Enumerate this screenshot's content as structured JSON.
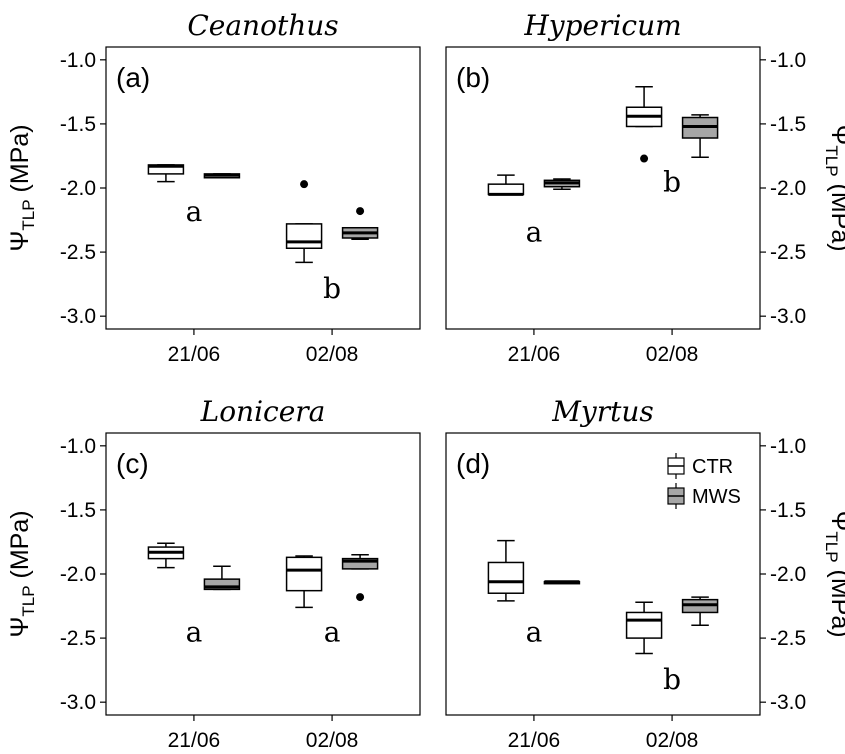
{
  "chart_data": {
    "type": "box",
    "ylim": [
      -3.1,
      -0.9
    ],
    "yticks": [
      -1.0,
      -1.5,
      -2.0,
      -2.5,
      -3.0
    ],
    "ytick_labels": [
      "-1.0",
      "-1.5",
      "-2.0",
      "-2.5",
      "-3.0"
    ],
    "categories": [
      "21/06",
      "02/08"
    ],
    "ylabel": {
      "main": "Ψ",
      "sub": "TLP",
      "unit": " (MPa)"
    },
    "series_colors": {
      "CTR": "#ffffff",
      "MWS": "#a6a6a6"
    },
    "legend": {
      "placement": "top-right of panel d",
      "entries": [
        "CTR",
        "MWS"
      ]
    },
    "panels": [
      {
        "id": "a",
        "label": "(a)",
        "title": "Ceanothus",
        "axis_side": "left",
        "boxes": [
          {
            "date": "21/06",
            "series": "CTR",
            "min": -1.95,
            "q1": -1.89,
            "median": -1.83,
            "q3": -1.82,
            "max": -1.82,
            "outliers": []
          },
          {
            "date": "21/06",
            "series": "MWS",
            "min": -1.92,
            "q1": -1.92,
            "median": -1.9,
            "q3": -1.89,
            "max": -1.89,
            "outliers": []
          },
          {
            "date": "02/08",
            "series": "CTR",
            "min": -2.58,
            "q1": -2.47,
            "median": -2.42,
            "q3": -2.28,
            "max": -2.28,
            "outliers": [
              -1.97
            ]
          },
          {
            "date": "02/08",
            "series": "MWS",
            "min": -2.4,
            "q1": -2.39,
            "median": -2.35,
            "q3": -2.31,
            "max": -2.31,
            "outliers": [
              -2.18
            ]
          }
        ],
        "sig": [
          {
            "date": "21/06",
            "text": "a",
            "y": -2.18
          },
          {
            "date": "02/08",
            "text": "b",
            "y": -2.78
          }
        ]
      },
      {
        "id": "b",
        "label": "(b)",
        "title": "Hypericum",
        "axis_side": "right",
        "boxes": [
          {
            "date": "21/06",
            "series": "CTR",
            "min": -2.05,
            "q1": -2.05,
            "median": -2.05,
            "q3": -1.97,
            "max": -1.9,
            "outliers": []
          },
          {
            "date": "21/06",
            "series": "MWS",
            "min": -2.01,
            "q1": -1.99,
            "median": -1.96,
            "q3": -1.94,
            "max": -1.93,
            "outliers": []
          },
          {
            "date": "02/08",
            "series": "CTR",
            "min": -1.52,
            "q1": -1.52,
            "median": -1.44,
            "q3": -1.37,
            "max": -1.21,
            "outliers": [
              -1.77
            ]
          },
          {
            "date": "02/08",
            "series": "MWS",
            "min": -1.76,
            "q1": -1.61,
            "median": -1.52,
            "q3": -1.45,
            "max": -1.43,
            "outliers": []
          }
        ],
        "sig": [
          {
            "date": "21/06",
            "text": "a",
            "y": -2.34
          },
          {
            "date": "02/08",
            "text": "b",
            "y": -1.95
          }
        ]
      },
      {
        "id": "c",
        "label": "(c)",
        "title": "Lonicera",
        "axis_side": "left",
        "boxes": [
          {
            "date": "21/06",
            "series": "CTR",
            "min": -1.95,
            "q1": -1.88,
            "median": -1.83,
            "q3": -1.79,
            "max": -1.76,
            "outliers": []
          },
          {
            "date": "21/06",
            "series": "MWS",
            "min": -2.12,
            "q1": -2.12,
            "median": -2.1,
            "q3": -2.04,
            "max": -1.94,
            "outliers": []
          },
          {
            "date": "02/08",
            "series": "CTR",
            "min": -2.26,
            "q1": -2.13,
            "median": -1.97,
            "q3": -1.87,
            "max": -1.86,
            "outliers": []
          },
          {
            "date": "02/08",
            "series": "MWS",
            "min": -1.96,
            "q1": -1.96,
            "median": -1.9,
            "q3": -1.88,
            "max": -1.85,
            "outliers": [
              -2.18
            ]
          }
        ],
        "sig": [
          {
            "date": "21/06",
            "text": "a",
            "y": -2.45
          },
          {
            "date": "02/08",
            "text": "a",
            "y": -2.45
          }
        ]
      },
      {
        "id": "d",
        "label": "(d)",
        "title": "Myrtus",
        "axis_side": "right",
        "boxes": [
          {
            "date": "21/06",
            "series": "CTR",
            "min": -2.21,
            "q1": -2.15,
            "median": -2.06,
            "q3": -1.91,
            "max": -1.74,
            "outliers": []
          },
          {
            "date": "21/06",
            "series": "MWS",
            "min": -2.07,
            "q1": -2.07,
            "median": -2.06,
            "q3": -2.06,
            "max": -2.06,
            "outliers": []
          },
          {
            "date": "02/08",
            "series": "CTR",
            "min": -2.62,
            "q1": -2.5,
            "median": -2.36,
            "q3": -2.3,
            "max": -2.22,
            "outliers": []
          },
          {
            "date": "02/08",
            "series": "MWS",
            "min": -2.4,
            "q1": -2.3,
            "median": -2.24,
            "q3": -2.2,
            "max": -2.18,
            "outliers": []
          }
        ],
        "sig": [
          {
            "date": "21/06",
            "text": "a",
            "y": -2.45
          },
          {
            "date": "02/08",
            "text": "b",
            "y": -2.82
          }
        ]
      }
    ]
  }
}
